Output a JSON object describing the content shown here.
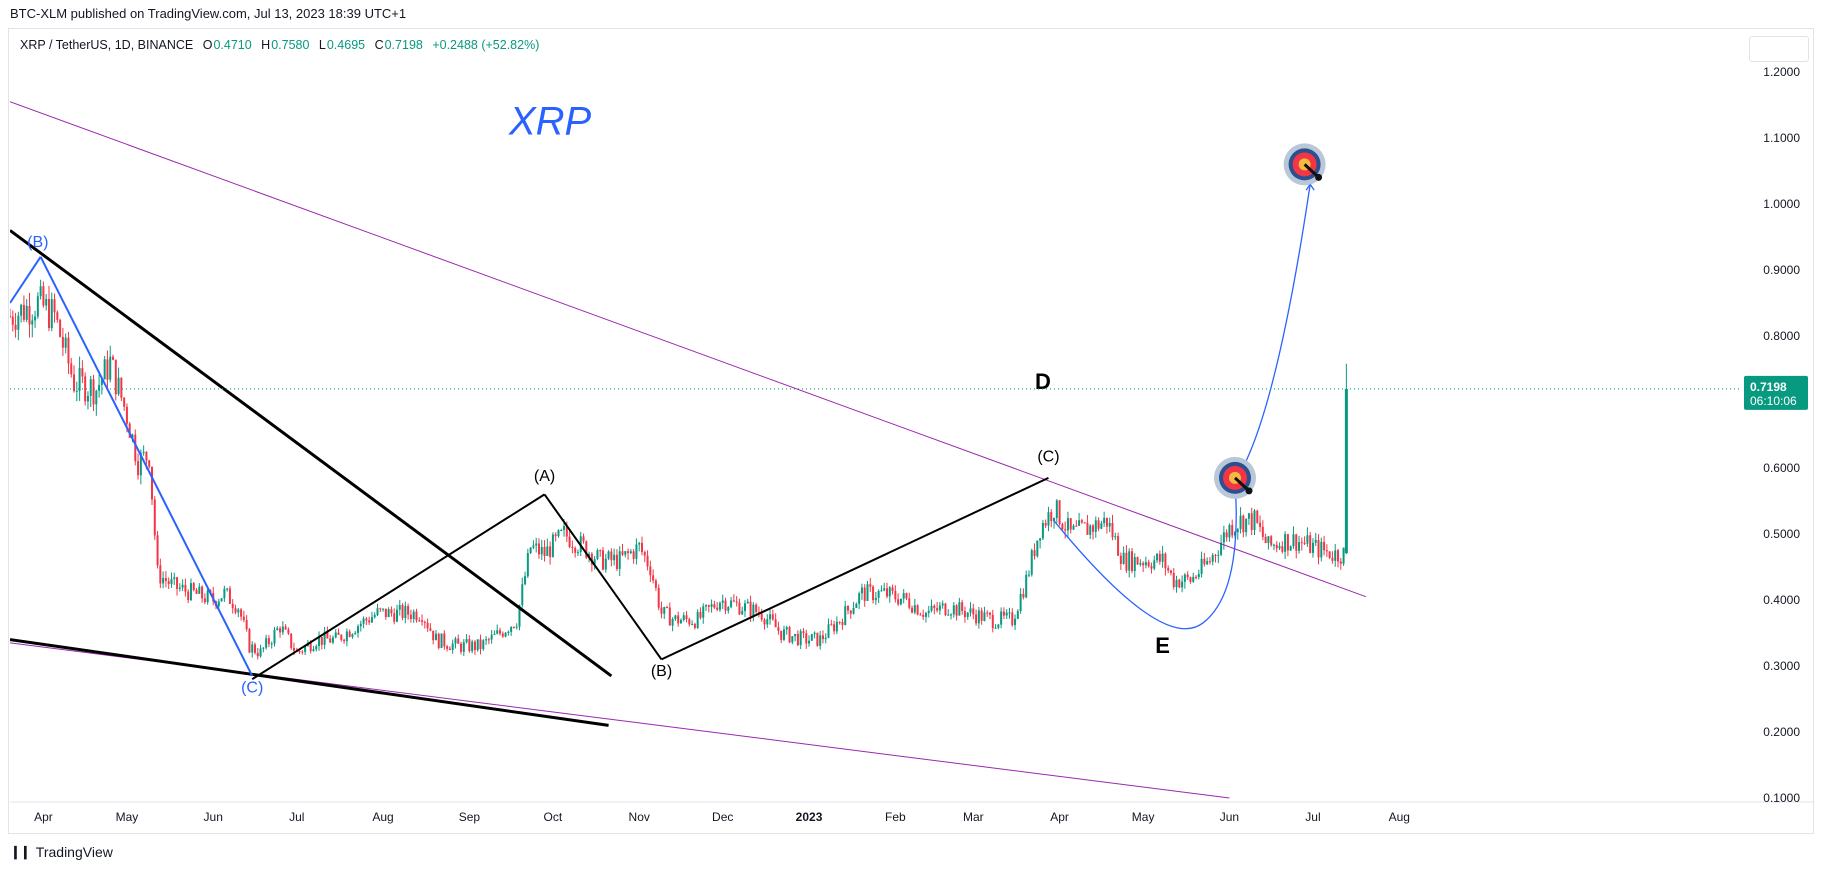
{
  "header": {
    "published": "BTC-XLM published on TradingView.com, Jul 13, 2023 18:39 UTC+1"
  },
  "legend": {
    "symbol": "XRP / TetherUS, 1D, BINANCE",
    "open_k": "O",
    "open": "0.4710",
    "high_k": "H",
    "high": "0.7580",
    "low_k": "L",
    "low": "0.4695",
    "close_k": "C",
    "close": "0.7198",
    "change": "+0.2488 (+52.82%)"
  },
  "price_label": {
    "value": "0.7198",
    "countdown": "06:10:06",
    "color": "#089981"
  },
  "footer": {
    "brand": "TradingView",
    "logo": "tradingview-logo-icon"
  },
  "colors": {
    "up": "#089981",
    "down": "#f23645",
    "accent": "#2962ff",
    "trend": "#9c27b0",
    "black": "#000000"
  },
  "chart_data": {
    "type": "candlestick",
    "symbol": "XRPUSDT",
    "timeframe": "1D",
    "x_tick_labels": [
      "Apr",
      "May",
      "Jun",
      "Jul",
      "Aug",
      "Sep",
      "Oct",
      "Nov",
      "Dec",
      "2023",
      "Feb",
      "Mar",
      "Apr",
      "May",
      "Jun",
      "Jul",
      "Aug"
    ],
    "y_tick_labels": [
      "1.2000",
      "1.1000",
      "1.0000",
      "0.9000",
      "0.8000",
      "0.7000",
      "0.6000",
      "0.5000",
      "0.4000",
      "0.3000",
      "0.2000",
      "0.1000"
    ],
    "ylim": [
      0.1,
      1.2
    ],
    "x_range": [
      "2022-03-20",
      "2023-08-30"
    ],
    "last_close": 0.7198,
    "price_path": [
      [
        "2022-03-20",
        0.83
      ],
      [
        "2022-03-30",
        0.85
      ],
      [
        "2022-04-05",
        0.83
      ],
      [
        "2022-04-12",
        0.73
      ],
      [
        "2022-04-20",
        0.72
      ],
      [
        "2022-04-25",
        0.76
      ],
      [
        "2022-05-01",
        0.68
      ],
      [
        "2022-05-05",
        0.61
      ],
      [
        "2022-05-09",
        0.62
      ],
      [
        "2022-05-12",
        0.44
      ],
      [
        "2022-05-18",
        0.42
      ],
      [
        "2022-05-25",
        0.41
      ],
      [
        "2022-06-01",
        0.4
      ],
      [
        "2022-06-05",
        0.41
      ],
      [
        "2022-06-10",
        0.39
      ],
      [
        "2022-06-14",
        0.33
      ],
      [
        "2022-06-18",
        0.32
      ],
      [
        "2022-06-25",
        0.36
      ],
      [
        "2022-07-01",
        0.32
      ],
      [
        "2022-07-08",
        0.34
      ],
      [
        "2022-07-15",
        0.34
      ],
      [
        "2022-07-22",
        0.36
      ],
      [
        "2022-07-30",
        0.38
      ],
      [
        "2022-08-08",
        0.38
      ],
      [
        "2022-08-15",
        0.38
      ],
      [
        "2022-08-20",
        0.34
      ],
      [
        "2022-08-28",
        0.33
      ],
      [
        "2022-09-05",
        0.33
      ],
      [
        "2022-09-12",
        0.35
      ],
      [
        "2022-09-18",
        0.37
      ],
      [
        "2022-09-23",
        0.48
      ],
      [
        "2022-09-28",
        0.47
      ],
      [
        "2022-10-05",
        0.5
      ],
      [
        "2022-10-12",
        0.48
      ],
      [
        "2022-10-18",
        0.46
      ],
      [
        "2022-10-25",
        0.46
      ],
      [
        "2022-11-01",
        0.48
      ],
      [
        "2022-11-05",
        0.45
      ],
      [
        "2022-11-09",
        0.38
      ],
      [
        "2022-11-14",
        0.37
      ],
      [
        "2022-11-22",
        0.37
      ],
      [
        "2022-11-30",
        0.4
      ],
      [
        "2022-12-08",
        0.39
      ],
      [
        "2022-12-15",
        0.38
      ],
      [
        "2022-12-22",
        0.35
      ],
      [
        "2022-12-30",
        0.34
      ],
      [
        "2023-01-05",
        0.34
      ],
      [
        "2023-01-12",
        0.37
      ],
      [
        "2023-01-20",
        0.41
      ],
      [
        "2023-01-28",
        0.41
      ],
      [
        "2023-02-05",
        0.4
      ],
      [
        "2023-02-12",
        0.38
      ],
      [
        "2023-02-20",
        0.39
      ],
      [
        "2023-02-28",
        0.38
      ],
      [
        "2023-03-08",
        0.37
      ],
      [
        "2023-03-15",
        0.37
      ],
      [
        "2023-03-20",
        0.43
      ],
      [
        "2023-03-25",
        0.51
      ],
      [
        "2023-03-30",
        0.54
      ],
      [
        "2023-04-05",
        0.5
      ],
      [
        "2023-04-12",
        0.51
      ],
      [
        "2023-04-18",
        0.52
      ],
      [
        "2023-04-24",
        0.46
      ],
      [
        "2023-05-01",
        0.46
      ],
      [
        "2023-05-08",
        0.46
      ],
      [
        "2023-05-12",
        0.43
      ],
      [
        "2023-05-18",
        0.43
      ],
      [
        "2023-05-25",
        0.46
      ],
      [
        "2023-06-01",
        0.51
      ],
      [
        "2023-06-05",
        0.52
      ],
      [
        "2023-06-10",
        0.52
      ],
      [
        "2023-06-15",
        0.48
      ],
      [
        "2023-06-20",
        0.49
      ],
      [
        "2023-06-25",
        0.49
      ],
      [
        "2023-07-01",
        0.48
      ],
      [
        "2023-07-08",
        0.47
      ],
      [
        "2023-07-12",
        0.47
      ],
      [
        "2023-07-13",
        0.7198
      ]
    ],
    "annotations": [
      {
        "text": "XRP",
        "date": "2022-09-30",
        "price": 1.105,
        "color": "#2962ff"
      },
      {
        "text": "(B)",
        "date": "2022-03-30",
        "price": 0.935,
        "color": "#2962ff"
      },
      {
        "text": "(C)",
        "date": "2022-06-15",
        "price": 0.26,
        "color": "#2962ff"
      },
      {
        "text": "(A)",
        "date": "2022-09-28",
        "price": 0.58,
        "color": "#000000"
      },
      {
        "text": "(B)",
        "date": "2022-11-09",
        "price": 0.285,
        "color": "#000000"
      },
      {
        "text": "(C)",
        "date": "2023-03-28",
        "price": 0.61,
        "color": "#000000"
      },
      {
        "text": "D",
        "date": "2023-03-26",
        "price": 0.72,
        "color": "#000000"
      },
      {
        "text": "E",
        "date": "2023-05-08",
        "price": 0.32,
        "color": "#000000"
      }
    ],
    "trendlines": [
      {
        "color": "#9c27b0",
        "width": 1,
        "from": [
          "2022-03-20",
          1.155
        ],
        "to": [
          "2023-07-20",
          0.405
        ]
      },
      {
        "color": "#9c27b0",
        "width": 1,
        "from": [
          "2022-03-20",
          0.335
        ],
        "to": [
          "2023-06-01",
          0.1
        ]
      },
      {
        "color": "#000000",
        "width": 3,
        "from": [
          "2022-03-20",
          0.34
        ],
        "to": [
          "2022-10-21",
          0.21
        ]
      },
      {
        "color": "#000000",
        "width": 3,
        "from": [
          "2022-03-20",
          0.96
        ],
        "to": [
          "2022-10-22",
          0.285
        ]
      },
      {
        "color": "#2962ff",
        "width": 2,
        "from": [
          "2022-03-20",
          0.85
        ],
        "to": [
          "2022-03-31",
          0.92
        ]
      },
      {
        "color": "#2962ff",
        "width": 2,
        "from": [
          "2022-03-31",
          0.92
        ],
        "to": [
          "2022-06-15",
          0.285
        ]
      },
      {
        "color": "#000000",
        "width": 2,
        "from": [
          "2022-06-15",
          0.28
        ],
        "to": [
          "2022-09-28",
          0.56
        ]
      },
      {
        "color": "#000000",
        "width": 2,
        "from": [
          "2022-09-28",
          0.56
        ],
        "to": [
          "2022-11-09",
          0.31
        ]
      },
      {
        "color": "#000000",
        "width": 2,
        "from": [
          "2022-11-09",
          0.31
        ],
        "to": [
          "2023-03-28",
          0.585
        ]
      }
    ],
    "projection": {
      "color": "#2962ff",
      "points": [
        [
          "2023-03-30",
          0.52
        ],
        [
          "2023-05-08",
          0.38
        ],
        [
          "2023-06-03",
          0.58
        ],
        [
          "2023-06-30",
          1.03
        ]
      ]
    },
    "targets": [
      {
        "date": "2023-06-03",
        "price": 0.585
      },
      {
        "date": "2023-06-28",
        "price": 1.06
      }
    ]
  }
}
